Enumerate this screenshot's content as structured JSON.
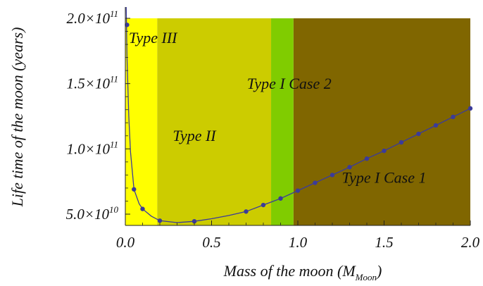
{
  "chart_data": {
    "type": "scatter",
    "xlabel_main": "Mass of  the moon (M",
    "xlabel_sub": "Moon",
    "xlabel_close": ")",
    "ylabel": "Life time of  the moon (years)",
    "xlim": [
      0,
      2
    ],
    "ylim": [
      42000000000,
      200000000000
    ],
    "x_ticks": [
      {
        "value": 0.0,
        "label": "0.0"
      },
      {
        "value": 0.5,
        "label": "0.5"
      },
      {
        "value": 1.0,
        "label": "1.0"
      },
      {
        "value": 1.5,
        "label": "1.5"
      },
      {
        "value": 2.0,
        "label": "2.0"
      }
    ],
    "y_ticks": [
      {
        "value": 50000000000,
        "mant": "5.0×10",
        "exp": "10"
      },
      {
        "value": 100000000000,
        "mant": "1.0×10",
        "exp": "11"
      },
      {
        "value": 150000000000,
        "mant": "1.5×10",
        "exp": "11"
      },
      {
        "value": 200000000000,
        "mant": "2.0×10",
        "exp": "11"
      }
    ],
    "regions": [
      {
        "label": "Type III",
        "x0": 0.0,
        "x1": 0.185,
        "color": "#ffff00",
        "label_x": 0.16,
        "label_y": 181000000000
      },
      {
        "label": "Type II",
        "x0": 0.185,
        "x1": 0.845,
        "color": "#cccc00",
        "label_x": 0.4,
        "label_y": 106000000000
      },
      {
        "label": "Type I Case 2",
        "x0": 0.845,
        "x1": 0.975,
        "color": "#80cc00",
        "label_x": 0.95,
        "label_y": 146000000000
      },
      {
        "label": "Type I Case 1",
        "x0": 0.975,
        "x1": 2.0,
        "color": "#806600",
        "label_x": 1.5,
        "label_y": 74000000000
      }
    ],
    "series": [
      {
        "color": "#3b3b9a",
        "points": [
          [
            0.01,
            195000000000
          ],
          [
            0.05,
            69000000000
          ],
          [
            0.1,
            54000000000
          ],
          [
            0.2,
            45000000000
          ],
          [
            0.4,
            44500000000
          ],
          [
            0.7,
            52000000000
          ],
          [
            0.8,
            57000000000
          ],
          [
            0.9,
            62000000000
          ],
          [
            1.0,
            68000000000
          ],
          [
            1.1,
            74000000000
          ],
          [
            1.2,
            80000000000
          ],
          [
            1.3,
            86000000000
          ],
          [
            1.4,
            92500000000
          ],
          [
            1.5,
            98500000000
          ],
          [
            1.6,
            105000000000
          ],
          [
            1.7,
            111500000000
          ],
          [
            1.8,
            118000000000
          ],
          [
            1.9,
            124500000000
          ],
          [
            2.0,
            131000000000
          ]
        ],
        "curve": [
          [
            0.005,
            210000000000
          ],
          [
            0.01,
            170000000000
          ],
          [
            0.02,
            125000000000
          ],
          [
            0.03,
            98000000000
          ],
          [
            0.05,
            69000000000
          ],
          [
            0.08,
            58000000000
          ],
          [
            0.1,
            54000000000
          ],
          [
            0.15,
            48500000000
          ],
          [
            0.2,
            45000000000
          ],
          [
            0.3,
            43500000000
          ],
          [
            0.4,
            44500000000
          ],
          [
            0.5,
            46500000000
          ],
          [
            0.6,
            49000000000
          ],
          [
            0.7,
            52000000000
          ],
          [
            0.8,
            57000000000
          ],
          [
            0.9,
            62000000000
          ],
          [
            1.0,
            68000000000
          ],
          [
            1.1,
            74000000000
          ],
          [
            1.2,
            80000000000
          ],
          [
            1.3,
            86000000000
          ],
          [
            1.4,
            92500000000
          ],
          [
            1.5,
            98500000000
          ],
          [
            1.6,
            105000000000
          ],
          [
            1.7,
            111500000000
          ],
          [
            1.8,
            118000000000
          ],
          [
            1.9,
            124500000000
          ],
          [
            2.0,
            131000000000
          ]
        ]
      }
    ]
  }
}
